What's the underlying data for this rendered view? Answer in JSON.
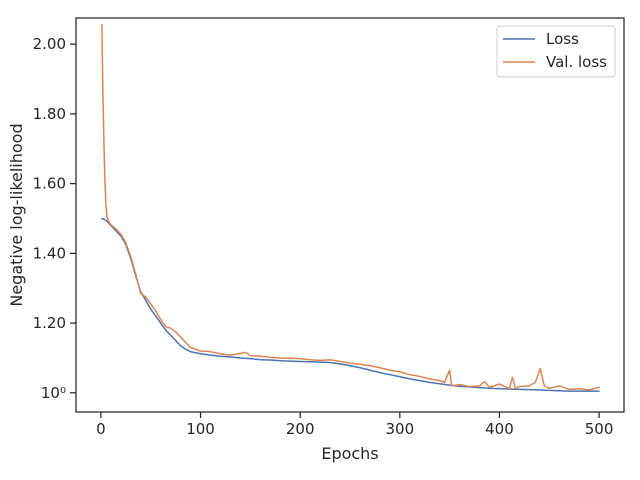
{
  "chart_data": {
    "type": "line",
    "xlabel": "Epochs",
    "ylabel": "Negative log-likelihood",
    "xlim": [
      -25,
      525
    ],
    "ylim": [
      0.945,
      2.075
    ],
    "x_ticks": [
      0,
      100,
      200,
      300,
      400,
      500
    ],
    "y_ticks": [
      1.0,
      1.2,
      1.4,
      1.6,
      1.8,
      2.0
    ],
    "y_tick_labels": [
      "10⁰",
      "1.20",
      "1.40",
      "1.60",
      "1.80",
      "2.00"
    ],
    "grid": false,
    "legend_position": "top-right",
    "series": [
      {
        "name": "Loss",
        "color": "#4c72b0",
        "points": [
          [
            1,
            1.5
          ],
          [
            5,
            1.495
          ],
          [
            10,
            1.48
          ],
          [
            15,
            1.465
          ],
          [
            20,
            1.45
          ],
          [
            25,
            1.425
          ],
          [
            30,
            1.385
          ],
          [
            35,
            1.335
          ],
          [
            40,
            1.29
          ],
          [
            45,
            1.265
          ],
          [
            50,
            1.24
          ],
          [
            55,
            1.22
          ],
          [
            60,
            1.2
          ],
          [
            65,
            1.18
          ],
          [
            70,
            1.165
          ],
          [
            75,
            1.15
          ],
          [
            80,
            1.135
          ],
          [
            85,
            1.125
          ],
          [
            90,
            1.118
          ],
          [
            95,
            1.115
          ],
          [
            100,
            1.112
          ],
          [
            110,
            1.108
          ],
          [
            120,
            1.105
          ],
          [
            130,
            1.103
          ],
          [
            140,
            1.1
          ],
          [
            150,
            1.098
          ],
          [
            160,
            1.095
          ],
          [
            170,
            1.094
          ],
          [
            180,
            1.092
          ],
          [
            190,
            1.091
          ],
          [
            200,
            1.09
          ],
          [
            210,
            1.089
          ],
          [
            220,
            1.088
          ],
          [
            230,
            1.087
          ],
          [
            240,
            1.083
          ],
          [
            250,
            1.078
          ],
          [
            260,
            1.072
          ],
          [
            270,
            1.065
          ],
          [
            280,
            1.058
          ],
          [
            290,
            1.052
          ],
          [
            300,
            1.046
          ],
          [
            310,
            1.04
          ],
          [
            320,
            1.035
          ],
          [
            330,
            1.03
          ],
          [
            340,
            1.026
          ],
          [
            350,
            1.022
          ],
          [
            360,
            1.019
          ],
          [
            370,
            1.017
          ],
          [
            380,
            1.015
          ],
          [
            390,
            1.013
          ],
          [
            400,
            1.012
          ],
          [
            410,
            1.011
          ],
          [
            420,
            1.01
          ],
          [
            430,
            1.009
          ],
          [
            440,
            1.008
          ],
          [
            450,
            1.007
          ],
          [
            460,
            1.006
          ],
          [
            470,
            1.005
          ],
          [
            480,
            1.005
          ],
          [
            490,
            1.005
          ],
          [
            500,
            1.005
          ]
        ]
      },
      {
        "name": "Val. loss",
        "color": "#dd8452",
        "points": [
          [
            1,
            2.055
          ],
          [
            2,
            1.86
          ],
          [
            3,
            1.72
          ],
          [
            4,
            1.61
          ],
          [
            5,
            1.54
          ],
          [
            6,
            1.505
          ],
          [
            8,
            1.49
          ],
          [
            10,
            1.482
          ],
          [
            15,
            1.47
          ],
          [
            20,
            1.455
          ],
          [
            25,
            1.43
          ],
          [
            30,
            1.39
          ],
          [
            35,
            1.34
          ],
          [
            40,
            1.285
          ],
          [
            45,
            1.275
          ],
          [
            50,
            1.255
          ],
          [
            55,
            1.235
          ],
          [
            60,
            1.21
          ],
          [
            65,
            1.19
          ],
          [
            70,
            1.185
          ],
          [
            75,
            1.175
          ],
          [
            80,
            1.16
          ],
          [
            85,
            1.145
          ],
          [
            90,
            1.13
          ],
          [
            95,
            1.125
          ],
          [
            100,
            1.12
          ],
          [
            110,
            1.118
          ],
          [
            120,
            1.112
          ],
          [
            130,
            1.108
          ],
          [
            140,
            1.113
          ],
          [
            145,
            1.116
          ],
          [
            150,
            1.107
          ],
          [
            160,
            1.105
          ],
          [
            170,
            1.102
          ],
          [
            180,
            1.1
          ],
          [
            190,
            1.099
          ],
          [
            200,
            1.098
          ],
          [
            210,
            1.095
          ],
          [
            220,
            1.093
          ],
          [
            230,
            1.095
          ],
          [
            240,
            1.09
          ],
          [
            250,
            1.085
          ],
          [
            260,
            1.082
          ],
          [
            270,
            1.078
          ],
          [
            280,
            1.072
          ],
          [
            290,
            1.065
          ],
          [
            300,
            1.06
          ],
          [
            310,
            1.052
          ],
          [
            320,
            1.047
          ],
          [
            330,
            1.04
          ],
          [
            340,
            1.035
          ],
          [
            345,
            1.03
          ],
          [
            350,
            1.065
          ],
          [
            352,
            1.02
          ],
          [
            360,
            1.024
          ],
          [
            370,
            1.018
          ],
          [
            380,
            1.02
          ],
          [
            385,
            1.032
          ],
          [
            390,
            1.016
          ],
          [
            400,
            1.025
          ],
          [
            410,
            1.012
          ],
          [
            413,
            1.045
          ],
          [
            416,
            1.012
          ],
          [
            420,
            1.018
          ],
          [
            430,
            1.02
          ],
          [
            436,
            1.03
          ],
          [
            441,
            1.07
          ],
          [
            445,
            1.02
          ],
          [
            450,
            1.013
          ],
          [
            460,
            1.02
          ],
          [
            470,
            1.01
          ],
          [
            480,
            1.012
          ],
          [
            490,
            1.008
          ],
          [
            500,
            1.016
          ]
        ]
      }
    ]
  }
}
